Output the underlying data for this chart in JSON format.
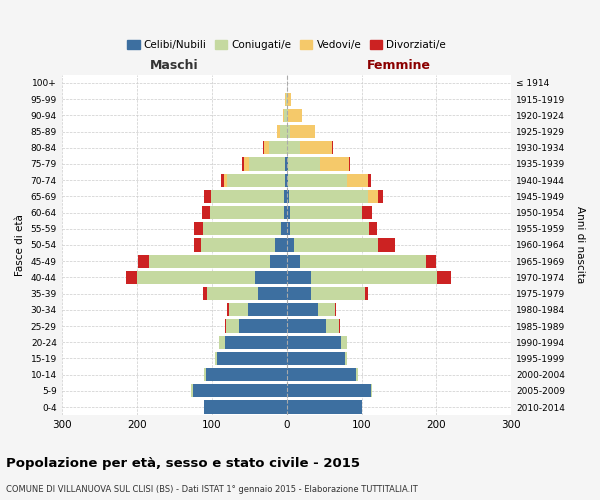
{
  "age_groups_bottom_to_top": [
    "0-4",
    "5-9",
    "10-14",
    "15-19",
    "20-24",
    "25-29",
    "30-34",
    "35-39",
    "40-44",
    "45-49",
    "50-54",
    "55-59",
    "60-64",
    "65-69",
    "70-74",
    "75-79",
    "80-84",
    "85-89",
    "90-94",
    "95-99",
    "100+"
  ],
  "birth_years_bottom_to_top": [
    "2010-2014",
    "2005-2009",
    "2000-2004",
    "1995-1999",
    "1990-1994",
    "1985-1989",
    "1980-1984",
    "1975-1979",
    "1970-1974",
    "1965-1969",
    "1960-1964",
    "1955-1959",
    "1950-1954",
    "1945-1949",
    "1940-1944",
    "1935-1939",
    "1930-1934",
    "1925-1929",
    "1920-1924",
    "1915-1919",
    "≤ 1914"
  ],
  "males_celibe": [
    110,
    125,
    108,
    93,
    82,
    63,
    52,
    38,
    42,
    22,
    16,
    7,
    4,
    3,
    2,
    2,
    0,
    0,
    0,
    0,
    0
  ],
  "males_conj": [
    0,
    2,
    2,
    2,
    8,
    18,
    25,
    68,
    158,
    162,
    98,
    105,
    98,
    98,
    78,
    48,
    23,
    9,
    3,
    1,
    0
  ],
  "males_ved": [
    0,
    0,
    0,
    0,
    0,
    0,
    0,
    0,
    0,
    0,
    0,
    0,
    0,
    0,
    4,
    7,
    7,
    4,
    2,
    1,
    0
  ],
  "males_div": [
    0,
    0,
    0,
    0,
    0,
    1,
    2,
    5,
    14,
    14,
    9,
    11,
    11,
    9,
    3,
    3,
    1,
    0,
    0,
    0,
    0
  ],
  "females_nubile": [
    100,
    112,
    93,
    78,
    72,
    52,
    42,
    32,
    33,
    18,
    10,
    5,
    4,
    3,
    2,
    2,
    0,
    0,
    0,
    0,
    0
  ],
  "females_conj": [
    0,
    2,
    2,
    2,
    8,
    18,
    22,
    72,
    168,
    168,
    112,
    105,
    96,
    105,
    78,
    43,
    18,
    5,
    2,
    1,
    0
  ],
  "females_ved": [
    0,
    0,
    0,
    0,
    0,
    0,
    0,
    0,
    0,
    0,
    0,
    0,
    0,
    14,
    28,
    38,
    43,
    33,
    18,
    5,
    1
  ],
  "females_div": [
    0,
    0,
    0,
    0,
    0,
    1,
    2,
    5,
    19,
    14,
    23,
    11,
    14,
    7,
    4,
    2,
    1,
    0,
    0,
    0,
    0
  ],
  "colors": {
    "celibe": "#3d6fa0",
    "coniugato": "#c5d9a0",
    "vedovo": "#f5c96a",
    "divorziato": "#cc2222"
  },
  "xlim": 300,
  "xticks": [
    -300,
    -200,
    -100,
    0,
    100,
    200,
    300
  ],
  "title": "Popolazione per età, sesso e stato civile - 2015",
  "subtitle": "COMUNE DI VILLANUOVA SUL CLISI (BS) - Dati ISTAT 1° gennaio 2015 - Elaborazione TUTTITALIA.IT",
  "xlabel_maschi": "Maschi",
  "xlabel_femmine": "Femmine",
  "ylabel_left": "Fasce di età",
  "ylabel_right": "Anni di nascita",
  "legend_labels": [
    "Celibi/Nubili",
    "Coniugati/e",
    "Vedovi/e",
    "Divorziati/e"
  ],
  "bg_color": "#f5f5f5",
  "plot_bg": "#ffffff",
  "maschi_color": "#333333",
  "femmine_color": "#8b0000",
  "bar_height": 0.82
}
